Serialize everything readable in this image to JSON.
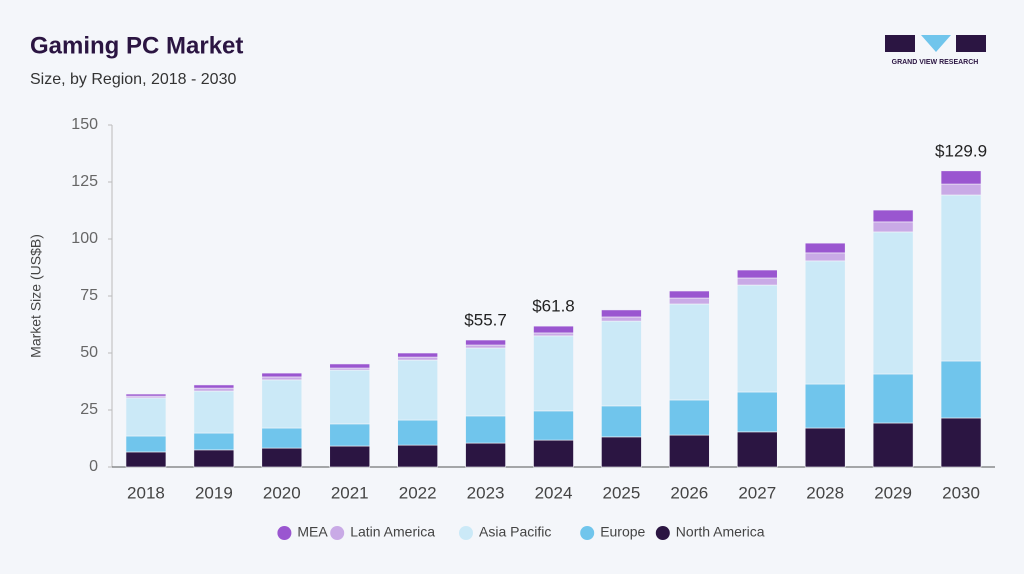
{
  "chart_data": {
    "type": "stacked_bar",
    "title": "Gaming PC Market",
    "subtitle": "Size, by Region, 2018 - 2030",
    "logo_text": "GRAND VIEW RESEARCH",
    "y_label": "Market Size (US$B)",
    "categories": [
      "2018",
      "2019",
      "2020",
      "2021",
      "2022",
      "2023",
      "2024",
      "2025",
      "2026",
      "2027",
      "2028",
      "2029",
      "2030"
    ],
    "series": [
      {
        "name": "North America",
        "color": "#2b1542",
        "values": [
          6.6,
          7.5,
          8.3,
          9.2,
          9.6,
          10.5,
          11.8,
          13.2,
          14.0,
          15.4,
          17.1,
          19.3,
          21.5
        ]
      },
      {
        "name": "Europe",
        "color": "#70c5ec",
        "values": [
          7.0,
          7.4,
          8.8,
          9.7,
          11.0,
          11.9,
          12.8,
          13.6,
          15.4,
          17.5,
          19.3,
          21.5,
          25.0
        ]
      },
      {
        "name": "Asia Pacific",
        "color": "#cbe9f7",
        "values": [
          16.7,
          18.4,
          21.1,
          23.6,
          26.3,
          29.8,
          32.9,
          37.2,
          42.1,
          46.9,
          54.0,
          62.3,
          72.8
        ]
      },
      {
        "name": "Latin America",
        "color": "#c9aae6",
        "values": [
          0.8,
          1.3,
          1.3,
          0.9,
          1.3,
          1.3,
          1.3,
          1.8,
          2.6,
          3.1,
          3.5,
          4.4,
          4.8
        ]
      },
      {
        "name": "MEA",
        "color": "#9a56d0",
        "values": [
          0.9,
          1.4,
          1.7,
          1.8,
          1.8,
          2.2,
          3.0,
          3.1,
          3.1,
          3.5,
          4.3,
          5.2,
          5.8
        ]
      }
    ],
    "annotations": [
      {
        "x": "2023",
        "value": 55.7,
        "label": "$55.7"
      },
      {
        "x": "2024",
        "value": 61.8,
        "label": "$61.8"
      },
      {
        "x": "2030",
        "value": 129.9,
        "label": "$129.9"
      }
    ],
    "ylim": [
      0,
      150
    ],
    "yticks": [
      0,
      25,
      50,
      75,
      100,
      125,
      150
    ],
    "grid": false,
    "legend": "bottom"
  }
}
